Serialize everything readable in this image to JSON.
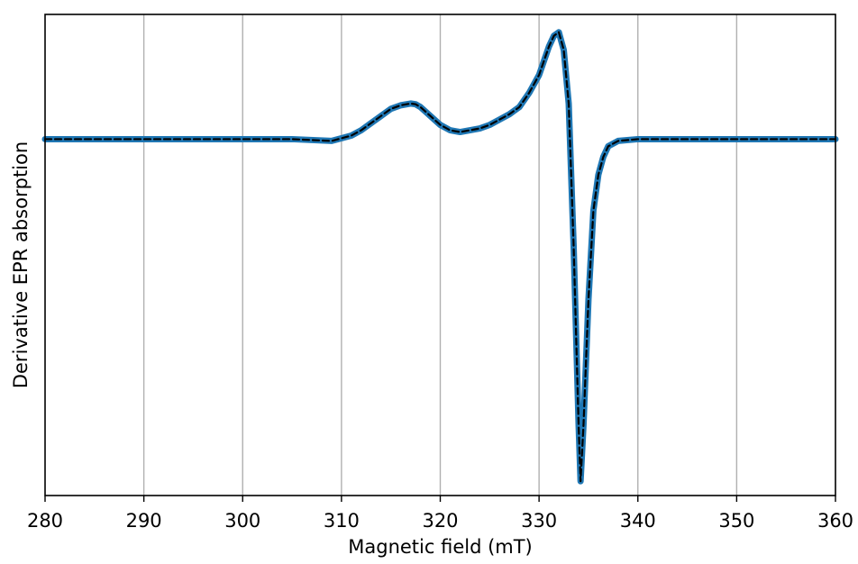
{
  "chart_data": {
    "type": "line",
    "title": "",
    "xlabel": "Magnetic field (mT)",
    "ylabel": "Derivative EPR absorption",
    "xlim": [
      280,
      360
    ],
    "ylim": [
      -1.0,
      0.35
    ],
    "x_ticks": [
      280,
      290,
      300,
      310,
      320,
      330,
      340,
      350,
      360
    ],
    "x_tick_labels": [
      "280",
      "290",
      "300",
      "310",
      "320",
      "330",
      "340",
      "350",
      "360"
    ],
    "y_ticks_shown": false,
    "grid": "vertical",
    "legend": "none",
    "series": [
      {
        "style": "solid",
        "color": "#1f77b4",
        "x": [
          280,
          290,
          300,
          305,
          309,
          311,
          312,
          313,
          314,
          315,
          316,
          317,
          317.5,
          318,
          319,
          320,
          321,
          322,
          323,
          324,
          325,
          326,
          327,
          328,
          329,
          330,
          331,
          331.5,
          332,
          332.5,
          333,
          333.5,
          334,
          334.2,
          334.5,
          335,
          335.5,
          336,
          336.5,
          337,
          338,
          340,
          350,
          360
        ],
        "y": [
          0,
          0,
          0,
          0,
          -0.005,
          0.01,
          0.025,
          0.045,
          0.065,
          0.085,
          0.095,
          0.1,
          0.098,
          0.09,
          0.065,
          0.04,
          0.025,
          0.02,
          0.025,
          0.03,
          0.04,
          0.055,
          0.07,
          0.09,
          0.13,
          0.18,
          0.26,
          0.29,
          0.3,
          0.25,
          0.1,
          -0.3,
          -0.8,
          -0.96,
          -0.8,
          -0.45,
          -0.2,
          -0.1,
          -0.05,
          -0.02,
          -0.005,
          0,
          0,
          0
        ]
      },
      {
        "style": "dashed",
        "color": "#000000",
        "x": [
          280,
          290,
          300,
          305,
          309,
          311,
          312,
          313,
          314,
          315,
          316,
          317,
          317.5,
          318,
          319,
          320,
          321,
          322,
          323,
          324,
          325,
          326,
          327,
          328,
          329,
          330,
          331,
          331.5,
          332,
          332.5,
          333,
          333.5,
          334,
          334.2,
          334.5,
          335,
          335.5,
          336,
          336.5,
          337,
          338,
          340,
          350,
          360
        ],
        "y": [
          0,
          0,
          0,
          0,
          -0.005,
          0.01,
          0.025,
          0.045,
          0.065,
          0.085,
          0.095,
          0.1,
          0.098,
          0.09,
          0.065,
          0.04,
          0.025,
          0.02,
          0.025,
          0.03,
          0.04,
          0.055,
          0.07,
          0.09,
          0.13,
          0.18,
          0.26,
          0.29,
          0.3,
          0.25,
          0.1,
          -0.3,
          -0.8,
          -0.96,
          -0.8,
          -0.45,
          -0.2,
          -0.1,
          -0.05,
          -0.02,
          -0.005,
          0,
          0,
          0
        ]
      }
    ]
  },
  "colors": {
    "grid": "#b0b0b0",
    "frame": "#000000",
    "solid_series": "#1f77b4",
    "dashed_series": "#000000"
  }
}
